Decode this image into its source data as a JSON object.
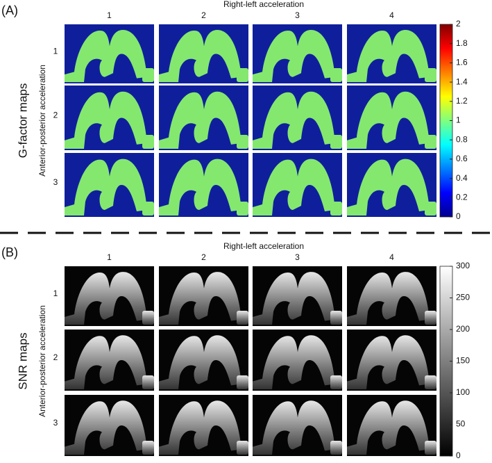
{
  "panels": [
    {
      "label": "(A)",
      "map_title": "G-factor maps",
      "column_title": "Right-left acceleration",
      "columns": [
        "1",
        "2",
        "3",
        "4"
      ],
      "row_title": "Anterior-posterior acceleration",
      "rows": [
        "1",
        "2",
        "3"
      ],
      "colorbar": {
        "ticks": [
          0,
          0.2,
          0.4,
          0.6,
          0.8,
          1,
          1.2,
          1.4,
          1.6,
          1.8,
          2
        ]
      }
    },
    {
      "label": "(B)",
      "map_title": "SNR maps",
      "column_title": "Right-left acceleration",
      "columns": [
        "1",
        "2",
        "3",
        "4"
      ],
      "row_title": "Anterior-posterior acceleration",
      "rows": [
        "1",
        "2",
        "3"
      ],
      "colorbar": {
        "ticks": [
          0,
          50,
          100,
          150,
          200,
          250,
          300
        ]
      }
    }
  ]
}
